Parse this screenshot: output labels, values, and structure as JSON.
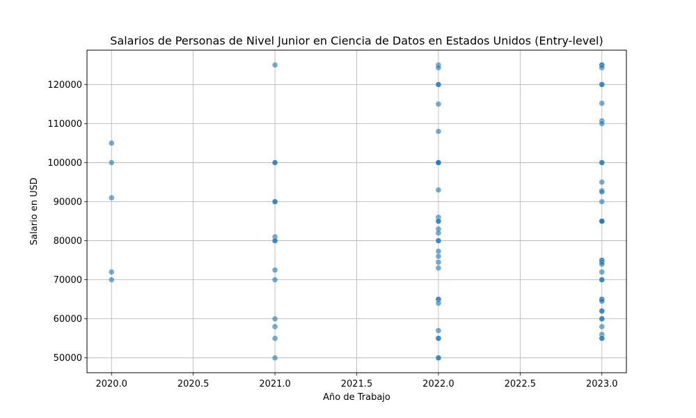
{
  "chart_data": {
    "type": "scatter",
    "title": "Salarios de Personas de Nivel Junior en Ciencia de Datos en Estados Unidos (Entry-level)",
    "xlabel": "Año de Trabajo",
    "ylabel": "Salario en USD",
    "xlim": [
      1984.85,
      2023.15
    ],
    "ylim": [
      46200,
      128800
    ],
    "grid": true,
    "point_color": "#1f77b4",
    "point_opacity": 0.6,
    "x_ticks": [
      "2020.0",
      "2020.5",
      "2021.0",
      "2021.5",
      "2022.0",
      "2022.5",
      "2023.0"
    ],
    "x_tick_values": [
      2020.0,
      2020.5,
      2021.0,
      2021.5,
      2022.0,
      2022.5,
      2023.0
    ],
    "y_ticks": [
      "50000",
      "60000",
      "70000",
      "80000",
      "90000",
      "100000",
      "110000",
      "120000"
    ],
    "y_tick_values": [
      50000,
      60000,
      70000,
      80000,
      90000,
      100000,
      110000,
      120000
    ],
    "points": [
      {
        "x": 2020,
        "y": 105000
      },
      {
        "x": 2020,
        "y": 100000
      },
      {
        "x": 2020,
        "y": 91000
      },
      {
        "x": 2020,
        "y": 72000
      },
      {
        "x": 2020,
        "y": 70000
      },
      {
        "x": 2021,
        "y": 125000
      },
      {
        "x": 2021,
        "y": 100000
      },
      {
        "x": 2021,
        "y": 100000
      },
      {
        "x": 2021,
        "y": 90000
      },
      {
        "x": 2021,
        "y": 90000
      },
      {
        "x": 2021,
        "y": 81000
      },
      {
        "x": 2021,
        "y": 80000
      },
      {
        "x": 2021,
        "y": 80000
      },
      {
        "x": 2021,
        "y": 72500
      },
      {
        "x": 2021,
        "y": 70000
      },
      {
        "x": 2021,
        "y": 60000
      },
      {
        "x": 2021,
        "y": 58000
      },
      {
        "x": 2021,
        "y": 55000
      },
      {
        "x": 2021,
        "y": 50000
      },
      {
        "x": 2022,
        "y": 125000
      },
      {
        "x": 2022,
        "y": 124300
      },
      {
        "x": 2022,
        "y": 120000
      },
      {
        "x": 2022,
        "y": 120000
      },
      {
        "x": 2022,
        "y": 115000
      },
      {
        "x": 2022,
        "y": 108000
      },
      {
        "x": 2022,
        "y": 100000
      },
      {
        "x": 2022,
        "y": 100000
      },
      {
        "x": 2022,
        "y": 100000
      },
      {
        "x": 2022,
        "y": 93000
      },
      {
        "x": 2022,
        "y": 86000
      },
      {
        "x": 2022,
        "y": 85000
      },
      {
        "x": 2022,
        "y": 85000
      },
      {
        "x": 2022,
        "y": 83000
      },
      {
        "x": 2022,
        "y": 82000
      },
      {
        "x": 2022,
        "y": 80000
      },
      {
        "x": 2022,
        "y": 80000
      },
      {
        "x": 2022,
        "y": 77300
      },
      {
        "x": 2022,
        "y": 76000
      },
      {
        "x": 2022,
        "y": 74500
      },
      {
        "x": 2022,
        "y": 73000
      },
      {
        "x": 2022,
        "y": 65000
      },
      {
        "x": 2022,
        "y": 65000
      },
      {
        "x": 2022,
        "y": 64000
      },
      {
        "x": 2022,
        "y": 57000
      },
      {
        "x": 2022,
        "y": 55000
      },
      {
        "x": 2022,
        "y": 55000
      },
      {
        "x": 2022,
        "y": 50000
      },
      {
        "x": 2022,
        "y": 50000
      },
      {
        "x": 2023,
        "y": 125000
      },
      {
        "x": 2023,
        "y": 125000
      },
      {
        "x": 2023,
        "y": 124300
      },
      {
        "x": 2023,
        "y": 120000
      },
      {
        "x": 2023,
        "y": 120000
      },
      {
        "x": 2023,
        "y": 115200
      },
      {
        "x": 2023,
        "y": 110700
      },
      {
        "x": 2023,
        "y": 110000
      },
      {
        "x": 2023,
        "y": 100000
      },
      {
        "x": 2023,
        "y": 100000
      },
      {
        "x": 2023,
        "y": 95000
      },
      {
        "x": 2023,
        "y": 92800
      },
      {
        "x": 2023,
        "y": 92500
      },
      {
        "x": 2023,
        "y": 90000
      },
      {
        "x": 2023,
        "y": 85000
      },
      {
        "x": 2023,
        "y": 85000
      },
      {
        "x": 2023,
        "y": 85000
      },
      {
        "x": 2023,
        "y": 75000
      },
      {
        "x": 2023,
        "y": 75000
      },
      {
        "x": 2023,
        "y": 74500
      },
      {
        "x": 2023,
        "y": 74000
      },
      {
        "x": 2023,
        "y": 72000
      },
      {
        "x": 2023,
        "y": 70000
      },
      {
        "x": 2023,
        "y": 70000
      },
      {
        "x": 2023,
        "y": 65000
      },
      {
        "x": 2023,
        "y": 65000
      },
      {
        "x": 2023,
        "y": 64500
      },
      {
        "x": 2023,
        "y": 62000
      },
      {
        "x": 2023,
        "y": 62000
      },
      {
        "x": 2023,
        "y": 60000
      },
      {
        "x": 2023,
        "y": 60000
      },
      {
        "x": 2023,
        "y": 58000
      },
      {
        "x": 2023,
        "y": 56000
      },
      {
        "x": 2023,
        "y": 55000
      },
      {
        "x": 2023,
        "y": 55000
      }
    ]
  }
}
